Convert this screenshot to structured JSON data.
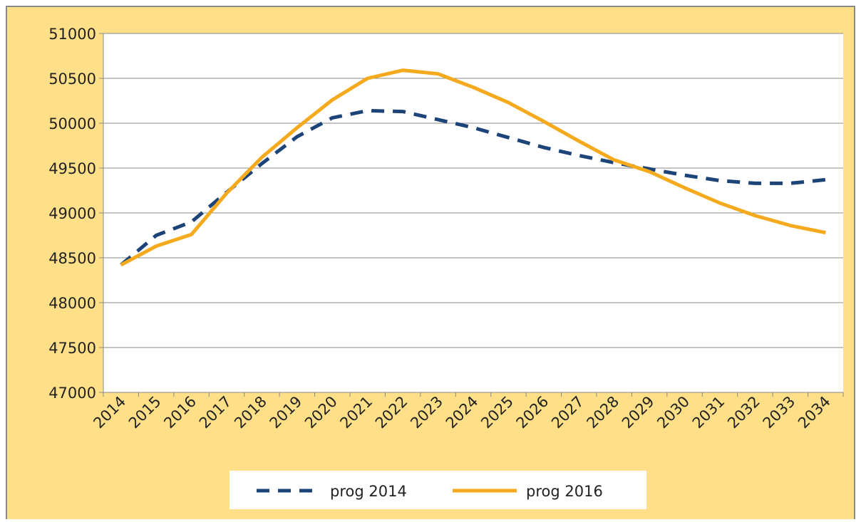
{
  "chart_data": {
    "type": "line",
    "categories": [
      "2014",
      "2015",
      "2016",
      "2017",
      "2018",
      "2019",
      "2020",
      "2021",
      "2022",
      "2023",
      "2024",
      "2025",
      "2026",
      "2027",
      "2028",
      "2029",
      "2030",
      "2031",
      "2032",
      "2033",
      "2034"
    ],
    "series": [
      {
        "name": "prog 2014",
        "color": "#1d4478",
        "dash": true,
        "values": [
          48420,
          48750,
          48900,
          49230,
          49550,
          49850,
          50060,
          50140,
          50130,
          50040,
          49950,
          49840,
          49730,
          49640,
          49560,
          49490,
          49420,
          49360,
          49330,
          49330,
          49370
        ]
      },
      {
        "name": "prog 2016",
        "color": "#f5aa1e",
        "dash": false,
        "values": [
          48420,
          48630,
          48760,
          49220,
          49620,
          49950,
          50260,
          50500,
          50590,
          50550,
          50400,
          50230,
          50020,
          49800,
          49590,
          49460,
          49280,
          49110,
          48970,
          48860,
          48780
        ]
      }
    ],
    "ylim": [
      47000,
      51000
    ],
    "yticks": [
      47000,
      47500,
      48000,
      48500,
      49000,
      49500,
      50000,
      50500,
      51000
    ],
    "grid": true
  }
}
